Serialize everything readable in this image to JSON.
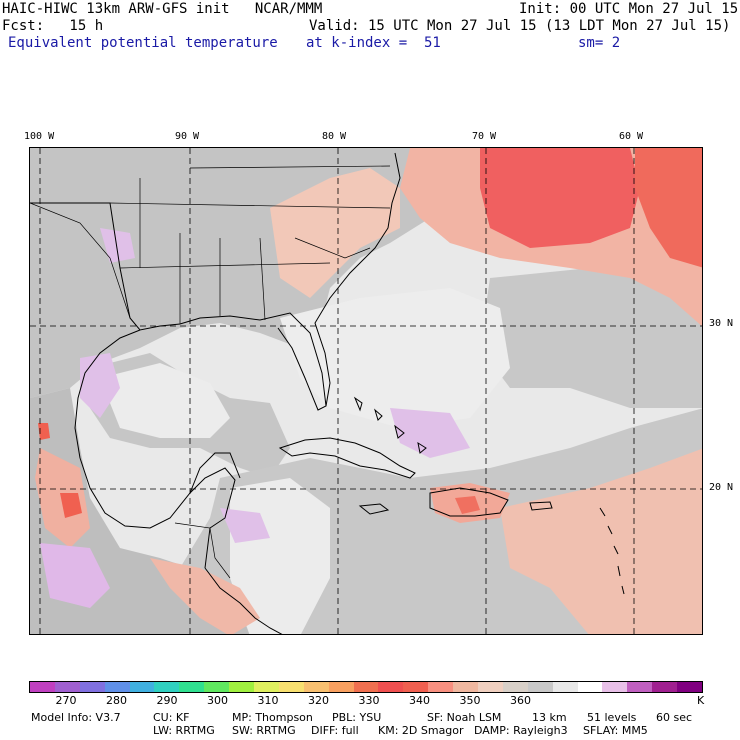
{
  "header": {
    "model_title": "HAIC-HIWC 13km ARW-GFS init   NCAR/MMM",
    "init": "Init: 00 UTC Mon 27 Jul 15",
    "fcst": "Fcst:   15 h",
    "valid": "Valid: 15 UTC Mon 27 Jul 15 (13 LDT Mon 27 Jul 15)",
    "field": "Equivalent potential temperature",
    "level": "at k-index =  51",
    "smoothing": "sm= 2"
  },
  "map": {
    "lon_labels": [
      "100 W",
      "90 W",
      "80 W",
      "70 W",
      "60 W"
    ],
    "lat_labels": [
      "30 N",
      "20 N"
    ],
    "colors": {
      "land_gray": "#c0c0c0",
      "ocean_light": "#ebebeb",
      "warm_pink": "#f0b0a0",
      "warm_red": "#f06060",
      "lavender": "#e0b8e8"
    }
  },
  "colorbar": {
    "colors": [
      "#c040c0",
      "#a060d0",
      "#8070e0",
      "#6090e8",
      "#40b0e0",
      "#30d0c0",
      "#30e090",
      "#60e860",
      "#a0f040",
      "#e0f060",
      "#f8e070",
      "#f8c070",
      "#f8a060",
      "#f07050",
      "#f05050",
      "#f06050",
      "#f89080",
      "#f0b8a0",
      "#f0d0c0",
      "#d8d0c8",
      "#c8c8c8",
      "#e8e8e8",
      "#ffffff",
      "#e8c0e8",
      "#c060c0",
      "#a02090",
      "#800080"
    ],
    "tick_labels": [
      "270",
      "280",
      "290",
      "300",
      "310",
      "320",
      "330",
      "340",
      "350",
      "360"
    ],
    "unit": "K"
  },
  "footer": {
    "line1": [
      "Model Info: V3.7",
      "CU: KF",
      "MP: Thompson",
      "PBL: YSU",
      "SF: Noah LSM",
      "13 km",
      "51 levels",
      "60 sec"
    ],
    "line2": [
      "LW: RRTMG",
      "SW: RRTMG",
      "DIFF: full",
      "KM: 2D Smagor",
      "DAMP: Rayleigh3",
      "SFLAY: MM5"
    ]
  }
}
